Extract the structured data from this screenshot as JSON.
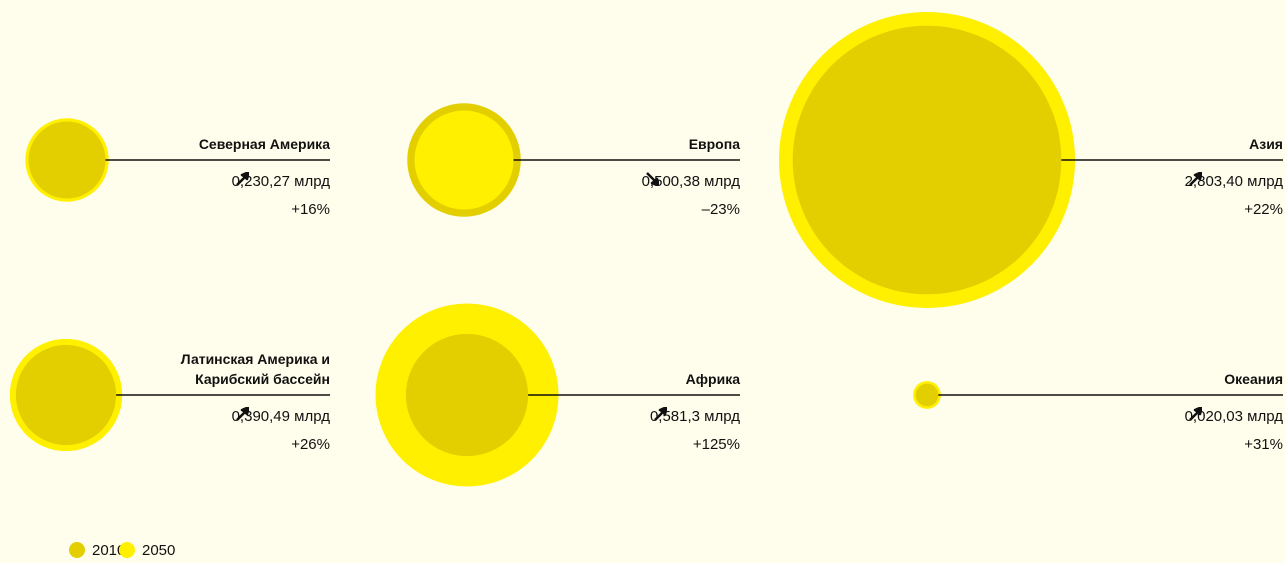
{
  "chart_data": {
    "type": "bubble",
    "categories": [
      "Северная Америка",
      "Европа",
      "Азия",
      "Латинская Америка и\nКарибский бассейн",
      "Африка",
      "Океания"
    ],
    "series": [
      {
        "name": "2010",
        "color": "#e3cf00",
        "values": [
          0.23,
          0.5,
          2.8,
          0.39,
          0.58,
          0.02
        ],
        "value_labels": [
          "0,23",
          "0,50",
          "2,80",
          "0,39",
          "0,58",
          "0,02"
        ]
      },
      {
        "name": "2050",
        "color": "#fff000",
        "values": [
          0.27,
          0.38,
          3.4,
          0.49,
          1.3,
          0.03
        ],
        "value_labels": [
          "0,27 млрд",
          "0,38 млрд",
          "3,40 млрд",
          "0,49 млрд",
          "1,3 млрд",
          "0,03 млрд"
        ]
      }
    ],
    "change": {
      "values": [
        16,
        -23,
        22,
        26,
        125,
        31
      ],
      "value_labels": [
        "+16%",
        "–23%",
        "+22%",
        "+26%",
        "+125%",
        "+31%"
      ]
    }
  }
}
